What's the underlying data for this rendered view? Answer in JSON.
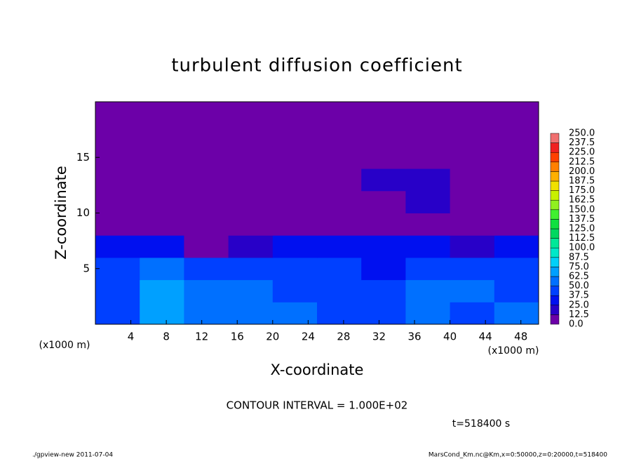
{
  "chart_data": {
    "type": "heatmap",
    "title": "turbulent diffusion coefficient",
    "xlabel": "X-coordinate",
    "ylabel": "Z-coordinate",
    "xunit": "(x1000 m)",
    "yunit": "(x1000 m)",
    "contour_interval": "CONTOUR INTERVAL = 1.000E+02",
    "time_label": "t=518400 s",
    "footer_left": "./gpview-new   2011-07-04",
    "footer_right": "MarsCond_Km.nc@Km,x=0:50000,z=0:20000,t=518400",
    "xlim": [
      0,
      50
    ],
    "ylim": [
      0,
      20
    ],
    "xticks": [
      4,
      8,
      12,
      16,
      20,
      24,
      28,
      32,
      36,
      40,
      44,
      48
    ],
    "yticks": [
      5,
      10,
      15
    ],
    "xbins": [
      0,
      5,
      10,
      15,
      20,
      25,
      30,
      35,
      40,
      45,
      50
    ],
    "ybins": [
      0,
      2,
      4,
      6,
      8,
      10,
      12,
      14,
      16,
      18,
      20
    ],
    "z": [
      [
        45,
        70,
        55,
        60,
        50,
        45,
        40,
        55,
        45,
        50
      ],
      [
        40,
        65,
        55,
        50,
        45,
        40,
        40,
        60,
        50,
        45
      ],
      [
        40,
        50,
        45,
        45,
        40,
        40,
        35,
        45,
        45,
        40
      ],
      [
        30,
        25,
        5,
        15,
        25,
        30,
        30,
        25,
        20,
        25
      ],
      [
        5,
        5,
        5,
        5,
        5,
        10,
        10,
        5,
        5,
        10
      ],
      [
        5,
        5,
        10,
        5,
        5,
        10,
        10,
        15,
        5,
        5
      ],
      [
        5,
        10,
        10,
        10,
        10,
        10,
        15,
        15,
        10,
        10
      ],
      [
        10,
        5,
        5,
        5,
        5,
        10,
        10,
        5,
        5,
        10
      ],
      [
        5,
        0,
        0,
        0,
        0,
        0,
        0,
        0,
        0,
        5
      ],
      [
        0,
        0,
        0,
        0,
        0,
        0,
        0,
        0,
        0,
        0
      ]
    ],
    "levels": [
      {
        "value": 0,
        "label": "0.0"
      },
      12.5,
      {
        "value": 25,
        "label": "25.0"
      },
      37.5,
      {
        "value": 50,
        "label": "50.0"
      },
      62.5,
      {
        "value": 75,
        "label": "75.0"
      },
      87.5,
      {
        "value": 100,
        "label": "100.0"
      },
      112.5,
      {
        "value": 125,
        "label": "125.0"
      },
      137.5,
      {
        "value": 150,
        "label": "150.0"
      },
      162.5,
      {
        "value": 175,
        "label": "175.0"
      },
      187.5,
      {
        "value": 200,
        "label": "200.0"
      },
      212.5,
      {
        "value": 225,
        "label": "225.0"
      },
      237.5,
      {
        "value": 250,
        "label": "250.0"
      }
    ],
    "colors": [
      "#6c00a8",
      "#2800c8",
      "#0010f0",
      "#0040ff",
      "#0070ff",
      "#00a0ff",
      "#00d0f8",
      "#00e8c8",
      "#00e898",
      "#00d860",
      "#10e040",
      "#40f030",
      "#90f020",
      "#c8f000",
      "#f0e000",
      "#ffb000",
      "#ff8000",
      "#ff4000",
      "#f02020",
      "#f07070"
    ]
  }
}
